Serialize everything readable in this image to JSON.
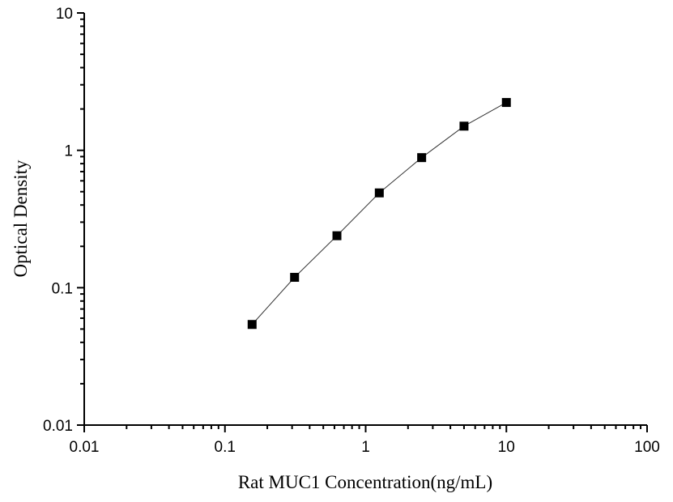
{
  "chart_data": {
    "type": "line",
    "title": "",
    "xlabel": "Rat MUC1 Concentration(ng/mL)",
    "ylabel": "Optical Density",
    "x_scale": "log",
    "y_scale": "log",
    "xlim": [
      0.01,
      100
    ],
    "ylim": [
      0.01,
      10
    ],
    "x_ticks": [
      "0.01",
      "0.1",
      "1",
      "10",
      "100"
    ],
    "y_ticks": [
      "0.01",
      "0.1",
      "1",
      "10"
    ],
    "grid": false,
    "marker": "square",
    "color": "#000000",
    "series": [
      {
        "x": [
          0.156,
          0.3125,
          0.625,
          1.25,
          2.5,
          5,
          10
        ],
        "y": [
          0.054,
          0.119,
          0.239,
          0.49,
          0.885,
          1.5,
          2.23
        ]
      }
    ]
  }
}
